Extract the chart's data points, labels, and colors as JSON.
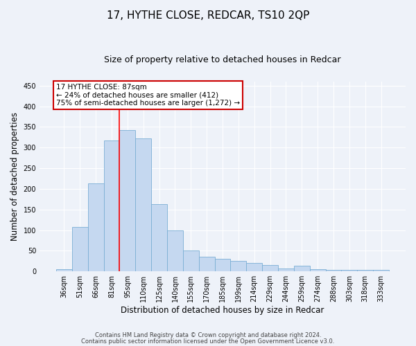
{
  "title": "17, HYTHE CLOSE, REDCAR, TS10 2QP",
  "subtitle": "Size of property relative to detached houses in Redcar",
  "xlabel": "Distribution of detached houses by size in Redcar",
  "ylabel": "Number of detached properties",
  "categories": [
    "36sqm",
    "51sqm",
    "66sqm",
    "81sqm",
    "95sqm",
    "110sqm",
    "125sqm",
    "140sqm",
    "155sqm",
    "170sqm",
    "185sqm",
    "199sqm",
    "214sqm",
    "229sqm",
    "244sqm",
    "259sqm",
    "274sqm",
    "288sqm",
    "303sqm",
    "318sqm",
    "333sqm"
  ],
  "values": [
    5,
    107,
    213,
    317,
    342,
    323,
    163,
    100,
    50,
    35,
    30,
    25,
    20,
    15,
    7,
    13,
    5,
    3,
    3,
    3,
    3
  ],
  "bar_color": "#c5d8f0",
  "bar_edge_color": "#7aaed4",
  "redline_index": 3.5,
  "annotation_text": "17 HYTHE CLOSE: 87sqm\n← 24% of detached houses are smaller (412)\n75% of semi-detached houses are larger (1,272) →",
  "annotation_box_color": "#ffffff",
  "annotation_box_edge": "#cc0000",
  "ylim": [
    0,
    460
  ],
  "yticks": [
    0,
    50,
    100,
    150,
    200,
    250,
    300,
    350,
    400,
    450
  ],
  "footer1": "Contains HM Land Registry data © Crown copyright and database right 2024.",
  "footer2": "Contains public sector information licensed under the Open Government Licence v3.0.",
  "background_color": "#eef2f9",
  "grid_color": "#ffffff",
  "title_fontsize": 11,
  "subtitle_fontsize": 9,
  "ylabel_fontsize": 8.5,
  "xlabel_fontsize": 8.5,
  "tick_fontsize": 7,
  "ann_fontsize": 7.5,
  "footer_fontsize": 6
}
